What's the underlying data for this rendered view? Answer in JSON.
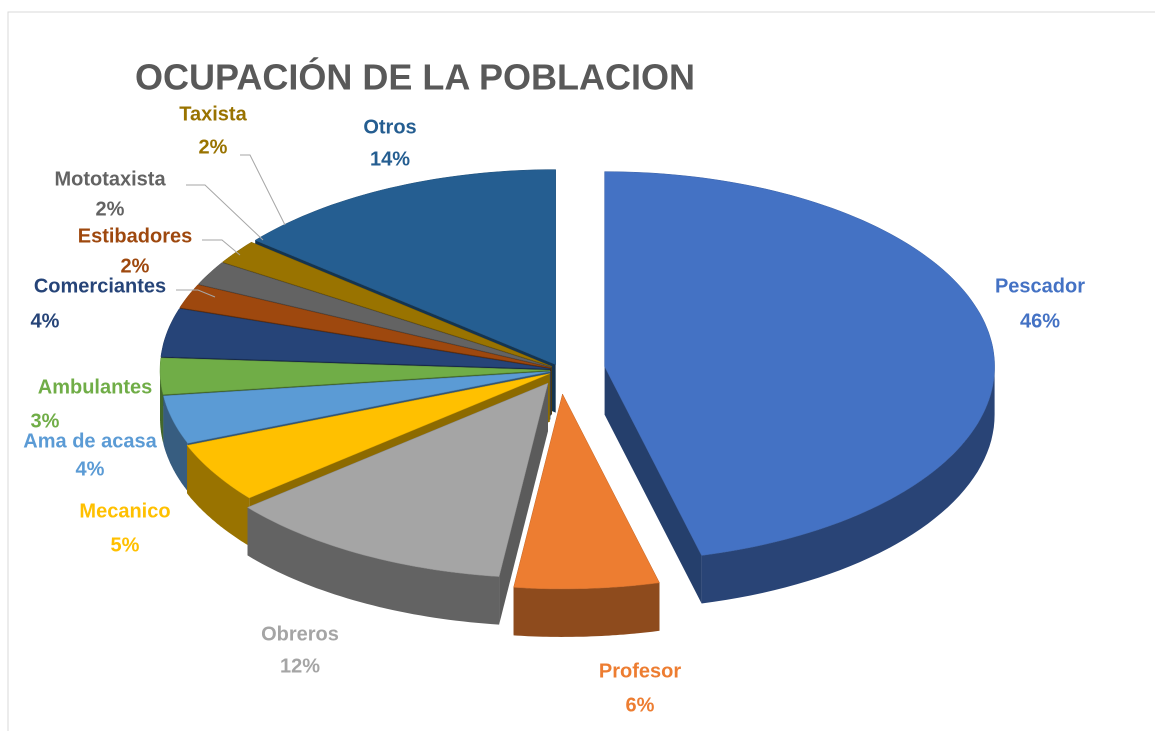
{
  "chart_data": {
    "type": "pie",
    "title": "OCUPACIÓN DE LA POBLACION",
    "categories": [
      "Pescador",
      "Profesor",
      "Obreros",
      "Mecanico",
      "Ama de acasa",
      "Ambulantes",
      "Comerciantes",
      "Estibadores",
      "Mototaxista",
      "Taxista",
      "Otros"
    ],
    "values": [
      46,
      6,
      12,
      5,
      4,
      3,
      4,
      2,
      2,
      2,
      14
    ],
    "value_labels": [
      "46%",
      "6%",
      "12%",
      "5%",
      "4%",
      "3%",
      "4%",
      "2%",
      "2%",
      "2%",
      "14%"
    ],
    "colors": [
      "#4472c4",
      "#ed7d31",
      "#a5a5a5",
      "#ffc000",
      "#5b9bd5",
      "#70ad47",
      "#264478",
      "#9e480e",
      "#636363",
      "#997300",
      "#255e91"
    ]
  }
}
